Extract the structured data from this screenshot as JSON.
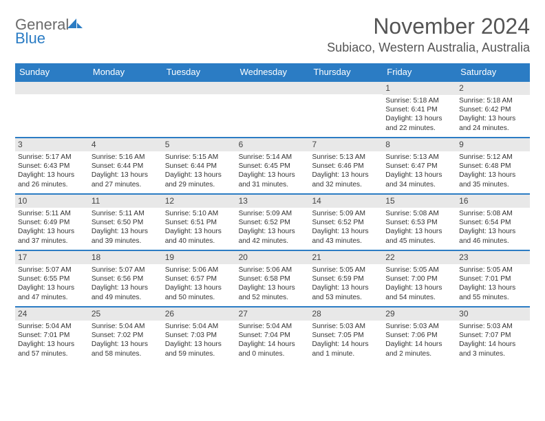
{
  "brand": {
    "part1": "General",
    "part2": "Blue"
  },
  "title": "November 2024",
  "location": "Subiaco, Western Australia, Australia",
  "colors": {
    "accent": "#2b7cc4",
    "header_text": "#555",
    "logo_gray": "#6a6a6a",
    "band": "#e8e8e8"
  },
  "dow": [
    "Sunday",
    "Monday",
    "Tuesday",
    "Wednesday",
    "Thursday",
    "Friday",
    "Saturday"
  ],
  "weeks": [
    [
      {
        "n": "",
        "sr": "",
        "ss": "",
        "dl": ""
      },
      {
        "n": "",
        "sr": "",
        "ss": "",
        "dl": ""
      },
      {
        "n": "",
        "sr": "",
        "ss": "",
        "dl": ""
      },
      {
        "n": "",
        "sr": "",
        "ss": "",
        "dl": ""
      },
      {
        "n": "",
        "sr": "",
        "ss": "",
        "dl": ""
      },
      {
        "n": "1",
        "sr": "Sunrise: 5:18 AM",
        "ss": "Sunset: 6:41 PM",
        "dl": "Daylight: 13 hours and 22 minutes."
      },
      {
        "n": "2",
        "sr": "Sunrise: 5:18 AM",
        "ss": "Sunset: 6:42 PM",
        "dl": "Daylight: 13 hours and 24 minutes."
      }
    ],
    [
      {
        "n": "3",
        "sr": "Sunrise: 5:17 AM",
        "ss": "Sunset: 6:43 PM",
        "dl": "Daylight: 13 hours and 26 minutes."
      },
      {
        "n": "4",
        "sr": "Sunrise: 5:16 AM",
        "ss": "Sunset: 6:44 PM",
        "dl": "Daylight: 13 hours and 27 minutes."
      },
      {
        "n": "5",
        "sr": "Sunrise: 5:15 AM",
        "ss": "Sunset: 6:44 PM",
        "dl": "Daylight: 13 hours and 29 minutes."
      },
      {
        "n": "6",
        "sr": "Sunrise: 5:14 AM",
        "ss": "Sunset: 6:45 PM",
        "dl": "Daylight: 13 hours and 31 minutes."
      },
      {
        "n": "7",
        "sr": "Sunrise: 5:13 AM",
        "ss": "Sunset: 6:46 PM",
        "dl": "Daylight: 13 hours and 32 minutes."
      },
      {
        "n": "8",
        "sr": "Sunrise: 5:13 AM",
        "ss": "Sunset: 6:47 PM",
        "dl": "Daylight: 13 hours and 34 minutes."
      },
      {
        "n": "9",
        "sr": "Sunrise: 5:12 AM",
        "ss": "Sunset: 6:48 PM",
        "dl": "Daylight: 13 hours and 35 minutes."
      }
    ],
    [
      {
        "n": "10",
        "sr": "Sunrise: 5:11 AM",
        "ss": "Sunset: 6:49 PM",
        "dl": "Daylight: 13 hours and 37 minutes."
      },
      {
        "n": "11",
        "sr": "Sunrise: 5:11 AM",
        "ss": "Sunset: 6:50 PM",
        "dl": "Daylight: 13 hours and 39 minutes."
      },
      {
        "n": "12",
        "sr": "Sunrise: 5:10 AM",
        "ss": "Sunset: 6:51 PM",
        "dl": "Daylight: 13 hours and 40 minutes."
      },
      {
        "n": "13",
        "sr": "Sunrise: 5:09 AM",
        "ss": "Sunset: 6:52 PM",
        "dl": "Daylight: 13 hours and 42 minutes."
      },
      {
        "n": "14",
        "sr": "Sunrise: 5:09 AM",
        "ss": "Sunset: 6:52 PM",
        "dl": "Daylight: 13 hours and 43 minutes."
      },
      {
        "n": "15",
        "sr": "Sunrise: 5:08 AM",
        "ss": "Sunset: 6:53 PM",
        "dl": "Daylight: 13 hours and 45 minutes."
      },
      {
        "n": "16",
        "sr": "Sunrise: 5:08 AM",
        "ss": "Sunset: 6:54 PM",
        "dl": "Daylight: 13 hours and 46 minutes."
      }
    ],
    [
      {
        "n": "17",
        "sr": "Sunrise: 5:07 AM",
        "ss": "Sunset: 6:55 PM",
        "dl": "Daylight: 13 hours and 47 minutes."
      },
      {
        "n": "18",
        "sr": "Sunrise: 5:07 AM",
        "ss": "Sunset: 6:56 PM",
        "dl": "Daylight: 13 hours and 49 minutes."
      },
      {
        "n": "19",
        "sr": "Sunrise: 5:06 AM",
        "ss": "Sunset: 6:57 PM",
        "dl": "Daylight: 13 hours and 50 minutes."
      },
      {
        "n": "20",
        "sr": "Sunrise: 5:06 AM",
        "ss": "Sunset: 6:58 PM",
        "dl": "Daylight: 13 hours and 52 minutes."
      },
      {
        "n": "21",
        "sr": "Sunrise: 5:05 AM",
        "ss": "Sunset: 6:59 PM",
        "dl": "Daylight: 13 hours and 53 minutes."
      },
      {
        "n": "22",
        "sr": "Sunrise: 5:05 AM",
        "ss": "Sunset: 7:00 PM",
        "dl": "Daylight: 13 hours and 54 minutes."
      },
      {
        "n": "23",
        "sr": "Sunrise: 5:05 AM",
        "ss": "Sunset: 7:01 PM",
        "dl": "Daylight: 13 hours and 55 minutes."
      }
    ],
    [
      {
        "n": "24",
        "sr": "Sunrise: 5:04 AM",
        "ss": "Sunset: 7:01 PM",
        "dl": "Daylight: 13 hours and 57 minutes."
      },
      {
        "n": "25",
        "sr": "Sunrise: 5:04 AM",
        "ss": "Sunset: 7:02 PM",
        "dl": "Daylight: 13 hours and 58 minutes."
      },
      {
        "n": "26",
        "sr": "Sunrise: 5:04 AM",
        "ss": "Sunset: 7:03 PM",
        "dl": "Daylight: 13 hours and 59 minutes."
      },
      {
        "n": "27",
        "sr": "Sunrise: 5:04 AM",
        "ss": "Sunset: 7:04 PM",
        "dl": "Daylight: 14 hours and 0 minutes."
      },
      {
        "n": "28",
        "sr": "Sunrise: 5:03 AM",
        "ss": "Sunset: 7:05 PM",
        "dl": "Daylight: 14 hours and 1 minute."
      },
      {
        "n": "29",
        "sr": "Sunrise: 5:03 AM",
        "ss": "Sunset: 7:06 PM",
        "dl": "Daylight: 14 hours and 2 minutes."
      },
      {
        "n": "30",
        "sr": "Sunrise: 5:03 AM",
        "ss": "Sunset: 7:07 PM",
        "dl": "Daylight: 14 hours and 3 minutes."
      }
    ]
  ]
}
